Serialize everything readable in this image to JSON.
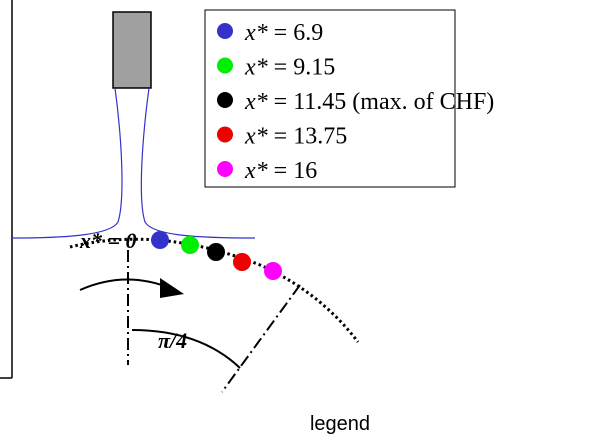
{
  "diagram": {
    "origin_label": "x* = 0",
    "angle_label": "π/4",
    "legend": [
      {
        "var": "x*",
        "text": "= 6.9",
        "color": "#3333cc"
      },
      {
        "var": "x*",
        "text": "= 9.15",
        "color": "#00ee00"
      },
      {
        "var": "x*",
        "text": "= 11.45 (max. of CHF)",
        "color": "#000000"
      },
      {
        "var": "x*",
        "text": "= 13.75",
        "color": "#ee0000"
      },
      {
        "var": "x*",
        "text": "= 16",
        "color": "#ff00ff"
      }
    ],
    "caption": "legend"
  }
}
